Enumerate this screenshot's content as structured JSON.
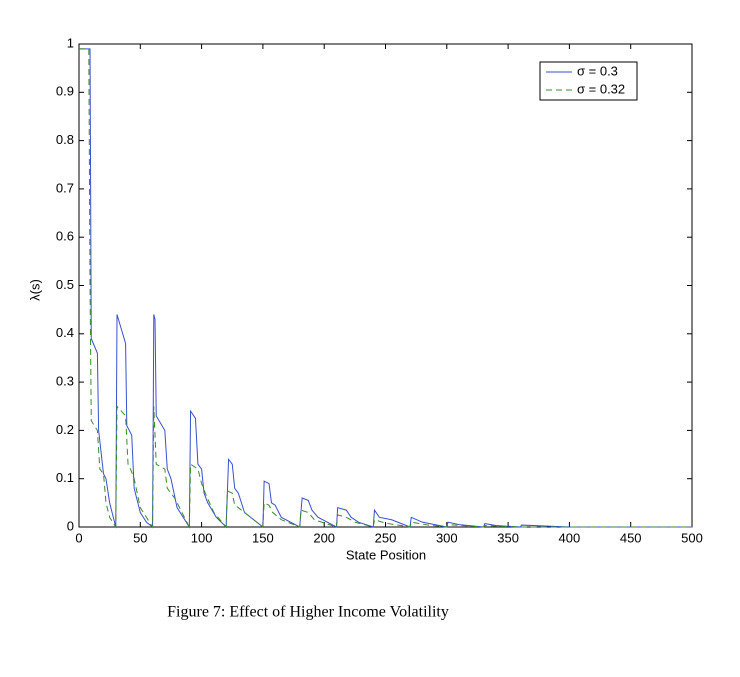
{
  "chart_data": {
    "type": "line",
    "xlabel": "State Position",
    "ylabel": "λ(s)",
    "caption": "Figure 7: Effect of Higher Income Volatility",
    "xlim": [
      0,
      500
    ],
    "xticks": [
      0,
      50,
      100,
      150,
      200,
      250,
      300,
      350,
      400,
      450,
      500
    ],
    "ylim": [
      0,
      1
    ],
    "yticks": [
      0,
      0.1,
      0.2,
      0.3,
      0.4,
      0.5,
      0.6,
      0.7,
      0.8,
      0.9,
      1
    ],
    "grid": false,
    "legend": "top-right",
    "series": [
      {
        "name": "σ = 0.3",
        "color": "#3a4fd0",
        "dash": "solid",
        "x": [
          0,
          9,
          10,
          15,
          16,
          20,
          22,
          25,
          30,
          31,
          38,
          39,
          43,
          45,
          50,
          55,
          60,
          61,
          62,
          63,
          70,
          72,
          75,
          80,
          90,
          91,
          95,
          97,
          100,
          102,
          105,
          112,
          120,
          122,
          125,
          127,
          130,
          135,
          150,
          151,
          155,
          157,
          160,
          165,
          180,
          182,
          187,
          190,
          195,
          210,
          211,
          218,
          222,
          228,
          240,
          241,
          245,
          255,
          270,
          271,
          280,
          300,
          301,
          310,
          330,
          331,
          340,
          360,
          361,
          380,
          400,
          500
        ],
        "values": [
          0.99,
          0.99,
          0.39,
          0.36,
          0.2,
          0.11,
          0.1,
          0.05,
          0,
          0.44,
          0.38,
          0.21,
          0.19,
          0.08,
          0.03,
          0.01,
          0,
          0.44,
          0.43,
          0.23,
          0.2,
          0.12,
          0.1,
          0.04,
          0,
          0.24,
          0.225,
          0.13,
          0.12,
          0.07,
          0.05,
          0.02,
          0,
          0.14,
          0.13,
          0.08,
          0.07,
          0.03,
          0,
          0.095,
          0.09,
          0.05,
          0.045,
          0.02,
          0,
          0.06,
          0.055,
          0.035,
          0.02,
          0,
          0.04,
          0.035,
          0.02,
          0.01,
          0,
          0.035,
          0.02,
          0.015,
          0,
          0.02,
          0.01,
          0,
          0.01,
          0.005,
          0,
          0.007,
          0.003,
          0,
          0.004,
          0.002,
          0,
          0
        ]
      },
      {
        "name": "σ = 0.32",
        "color": "#3a8a2a",
        "dash": "dashed",
        "x": [
          0,
          8,
          9,
          10,
          15,
          17,
          20,
          22,
          25,
          30,
          31,
          38,
          40,
          42,
          45,
          50,
          60,
          61,
          63,
          70,
          72,
          78,
          90,
          91,
          97,
          100,
          103,
          110,
          120,
          121,
          125,
          127,
          130,
          150,
          151,
          155,
          158,
          165,
          180,
          181,
          187,
          192,
          210,
          211,
          218,
          225,
          240,
          241,
          250,
          270,
          271,
          285,
          300,
          301,
          330,
          331,
          360,
          500
        ],
        "values": [
          0.99,
          0.99,
          0.5,
          0.22,
          0.2,
          0.12,
          0.11,
          0.05,
          0.02,
          0,
          0.25,
          0.23,
          0.13,
          0.12,
          0.1,
          0.04,
          0,
          0.25,
          0.13,
          0.12,
          0.08,
          0.06,
          0,
          0.13,
          0.12,
          0.09,
          0.07,
          0.03,
          0,
          0.075,
          0.07,
          0.045,
          0.04,
          0,
          0.05,
          0.045,
          0.03,
          0.015,
          0,
          0.035,
          0.03,
          0.015,
          0,
          0.025,
          0.02,
          0.01,
          0,
          0.015,
          0.008,
          0,
          0.01,
          0.004,
          0,
          0.005,
          0,
          0.003,
          0,
          0
        ]
      }
    ]
  }
}
